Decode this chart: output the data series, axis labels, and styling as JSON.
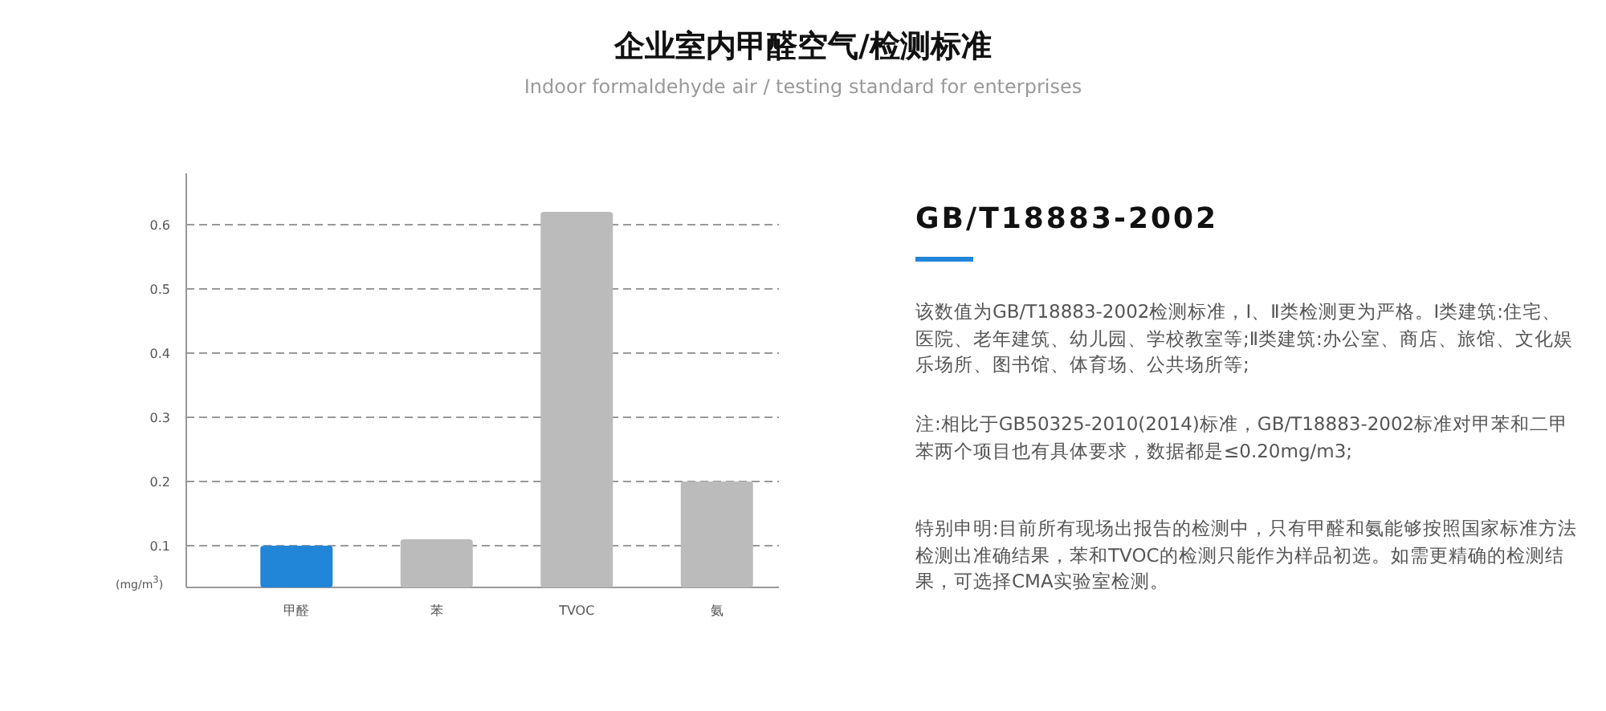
{
  "chart_data": [
    {
      "type": "bar",
      "title": "企业室内甲醛空气/检测标准",
      "subtitle": "Indoor formaldehyde air / testing standard for enterprises",
      "ylabel": "(mg/m$^{3}$)",
      "categories": [
        "甲醛",
        "苯",
        "TVOC",
        "氨"
      ],
      "values": [
        0.1,
        0.11,
        0.62,
        0.2
      ],
      "colors": [
        "#2185d8",
        "#bbbbbb",
        "#bbbbbb",
        "#bbbbbb"
      ],
      "ylim": [
        0.035,
        0.68
      ],
      "yticks": [
        0.1,
        0.2,
        0.3,
        0.4,
        0.5,
        0.6
      ],
      "grid": "y"
    },
    {
      "type": "other",
      "title": "GB/T18883-2002",
      "annotations": [
        "该数值为GB/T18883-2002检测标准，Ⅰ、Ⅱ类检测更为严格。Ⅰ类建筑:住宅、医院、老年建筑、幼儿园、学校教室等;Ⅱ类建筑:办公室、商店、旅馆、文化娱乐场所、图书馆、体育场、公共场所等;",
        "注:相比于GB50325-2010(2014)标准，GB/T18883-2002标准对甲苯和二甲苯两个项目也有具体要求，数据都是≤0.20mg/m3;",
        "特别申明:目前所有现场出报告的检测中，只有甲醛和氨能够按照国家标准方法检测出准确结果，苯和TVOC的检测只能作为样品初选。如需更精确的检测结果，可选择CMA实验室检测。"
      ]
    }
  ]
}
